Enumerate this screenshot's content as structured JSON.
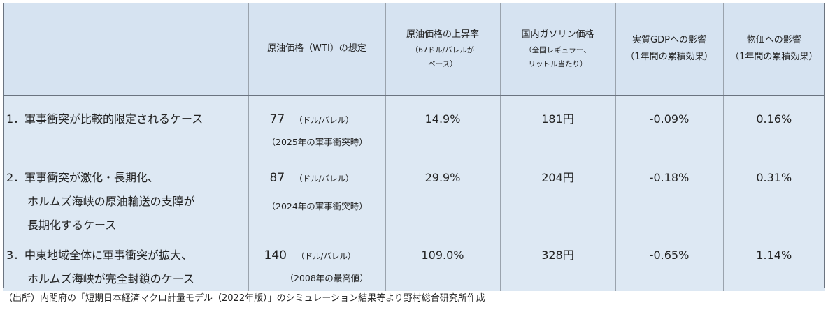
{
  "header": {
    "col1": "",
    "col2": "原油価格（WTI）の想定",
    "col3": "原油価格の上昇率",
    "col3_sub": "（67ドル/バレルがベース）",
    "col3_sub_l1": "（67ドル/バレルが",
    "col3_sub_l2": "ベース）",
    "col4": "国内ガソリン価格",
    "col4_sub_l1": "（全国レギュラー、",
    "col4_sub_l2": "リットル当たり）",
    "col5_l1": "実質GDPへの影響",
    "col5_l2": "（1年間の累積効果）",
    "col6_l1": "物価への影響",
    "col6_l2": "（1年間の累積効果）"
  },
  "rows": [
    {
      "num": "1．",
      "lines": [
        "軍事衝突が比較的限定されるケース"
      ],
      "oil": "77",
      "unit": "（ドル/バレル）",
      "note": "（2025年の軍事衝突時）",
      "rise": "14.9%",
      "gasoline": "181円",
      "gdp": "-0.09%",
      "prices": "0.16%"
    },
    {
      "num": "2．",
      "lines": [
        "軍事衝突が激化・長期化、",
        "ホルムズ海峡の原油輸送の支障が",
        "長期化するケース"
      ],
      "oil": "87",
      "unit": "（ドル/バレル）",
      "note": "（2024年の軍事衝突時）",
      "rise": "29.9%",
      "gasoline": "204円",
      "gdp": "-0.18%",
      "prices": "0.31%"
    },
    {
      "num": "3．",
      "lines": [
        "中東地域全体に軍事衝突が拡大、",
        "ホルムズ海峡が完全封鎖のケース"
      ],
      "oil": "140",
      "unit": "（ドル/バレル）",
      "note": "（2008年の最高値）",
      "rise": "109.0%",
      "gasoline": "328円",
      "gdp": "-0.65%",
      "prices": "1.14%"
    }
  ],
  "caption": "（出所）内閣府の「短期日本経済マクロ計量モデル（2022年版）」のシミュレーション結果等より野村総合研究所作成",
  "colors": {
    "header_bg": "#d6e3f1",
    "body_bg": "#dde8f3",
    "border": "#6b7480"
  }
}
